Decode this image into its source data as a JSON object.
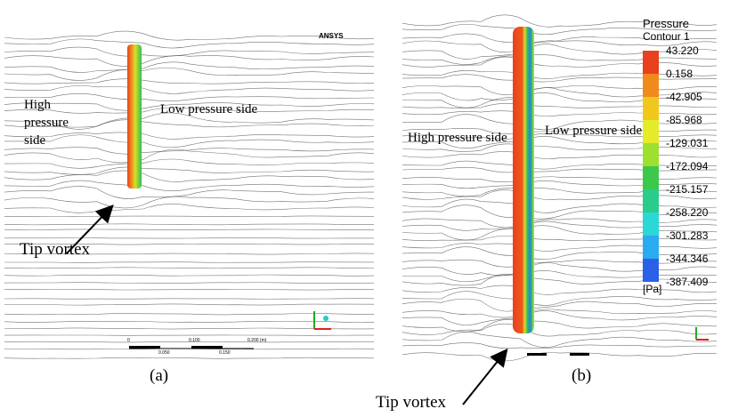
{
  "panel_a": {
    "label": "(a)",
    "brand": "ANSYS",
    "high_pressure_label": "High pressure side",
    "low_pressure_label": "Low pressure side",
    "tip_vortex_label": "Tip vortex",
    "scale_bar": [
      "0",
      "0.100",
      "0.200 (m)",
      "0.050",
      "0.150"
    ]
  },
  "panel_b": {
    "label": "(b)",
    "high_pressure_label": "High pressure side",
    "low_pressure_label": "Low pressure side",
    "tip_vortex_label": "Tip vortex",
    "legend": {
      "title": "Pressure",
      "subtitle": "Contour 1",
      "levels": [
        "43.220",
        "0.158",
        "-42.905",
        "-85.968",
        "-129.031",
        "-172.094",
        "-215.157",
        "-258.220",
        "-301.283",
        "-344.346",
        "-387.409"
      ],
      "unit": "[Pa]"
    }
  }
}
